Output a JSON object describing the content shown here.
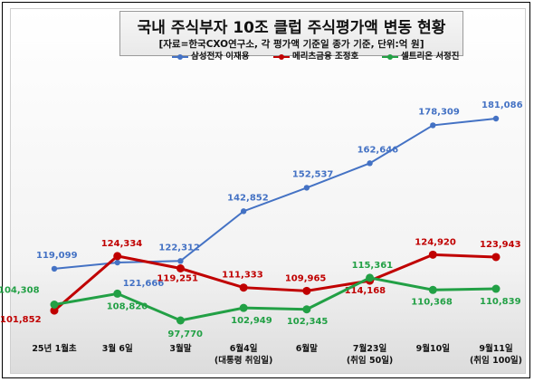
{
  "title": "국내 주식부자 10조 클럽 주식평가액 변동 현황",
  "subtitle": "[자료=한국CXO연구소, 각 평가액 기준일 종가 기준, 단위:억 원]",
  "chart_data": {
    "type": "line",
    "title": "국내 주식부자 10조 클럽 주식평가액 변동 현황",
    "subtitle": "[자료=한국CXO연구소, 각 평가액 기준일 종가 기준, 단위:억 원]",
    "categories": [
      [
        "25년 1월초",
        ""
      ],
      [
        "3월 6일",
        ""
      ],
      [
        "3월말",
        ""
      ],
      [
        "6월4일",
        "(대통령 취임일)"
      ],
      [
        "6월말",
        ""
      ],
      [
        "7월23일",
        "(취임 50일)"
      ],
      [
        "9월10일",
        ""
      ],
      [
        "9월11일",
        "(취임 100일)"
      ]
    ],
    "series": [
      {
        "name": "삼성전자 이재용",
        "color": "#4472c4",
        "values": [
          119099,
          121666,
          122312,
          142852,
          152537,
          162646,
          178309,
          181086
        ],
        "labels": [
          "119,099",
          "121,666",
          "122,312",
          "142,852",
          "152,537",
          "162,646",
          "178,309",
          "181,086"
        ]
      },
      {
        "name": "메리츠금융 조정호",
        "color": "#c00000",
        "values": [
          101852,
          124334,
          119251,
          111333,
          109965,
          114168,
          124920,
          123943
        ],
        "labels": [
          "101,852",
          "124,334",
          "119,251",
          "111,333",
          "109,965",
          "114,168",
          "124,920",
          "123,943"
        ]
      },
      {
        "name": "셀트리온 서정진",
        "color": "#22a045",
        "values": [
          104308,
          108820,
          97770,
          102949,
          102345,
          115361,
          110368,
          110839
        ],
        "labels": [
          "104,308",
          "108,820",
          "97,770",
          "102,949",
          "102,345",
          "115,361",
          "110,368",
          "110,839"
        ]
      }
    ],
    "legend_position": "top",
    "grid": false
  }
}
